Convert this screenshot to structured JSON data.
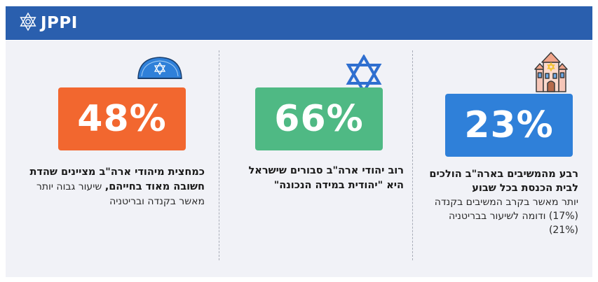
{
  "header": {
    "logo_text": "JPPI",
    "bg_color": "#2a5fae"
  },
  "stats": [
    {
      "value": "48%",
      "color": "#f2672f",
      "icon": "kippah-icon",
      "bold": "כמחצית מיהודי ארה\"ב מציינים שהדת חשובה מאוד בחייהם,",
      "normal": " שיעור גבוה יותר מאשר בקנדה ובריטניה"
    },
    {
      "value": "66%",
      "color": "#4fb984",
      "icon": "star-of-david-icon",
      "bold": "רוב יהודי ארה\"ב סבורים שישראל היא \"יהודית במידה הנכונה\"",
      "normal": ""
    },
    {
      "value": "23%",
      "color": "#2f80d9",
      "icon": "synagogue-icon",
      "bold": "רבע מהמשיבים בארה\"ב הולכים לבית הכנסת בכל שבוע",
      "normal": "יותר מאשר בקרב המשיבים בקנדה (17%) ודומה לשיעור בבריטניה (21%)"
    }
  ]
}
